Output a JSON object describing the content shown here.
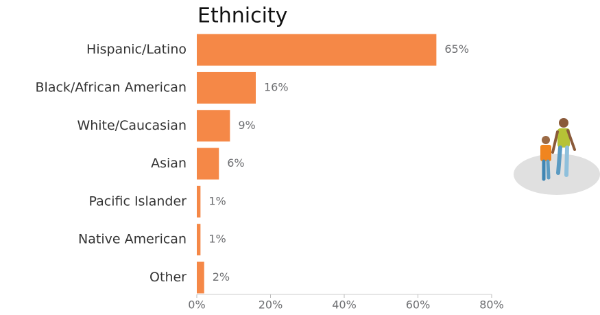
{
  "chart_data": {
    "type": "bar",
    "orientation": "horizontal",
    "title": "Ethnicity",
    "categories": [
      "Hispanic/Latino",
      "Black/African American",
      "White/Caucasian",
      "Asian",
      "Pacific Islander",
      "Native American",
      "Other"
    ],
    "values": [
      65,
      16,
      9,
      6,
      1,
      1,
      2
    ],
    "value_labels": [
      "65%",
      "16%",
      "9%",
      "6%",
      "1%",
      "1%",
      "2%"
    ],
    "color": "#f58847",
    "xlim": [
      0,
      80
    ],
    "xticks": [
      {
        "value": 0,
        "label": "0%"
      },
      {
        "value": 20,
        "label": "20%"
      },
      {
        "value": 40,
        "label": "40%"
      },
      {
        "value": 60,
        "label": "60%"
      },
      {
        "value": 80,
        "label": "80%"
      }
    ]
  }
}
